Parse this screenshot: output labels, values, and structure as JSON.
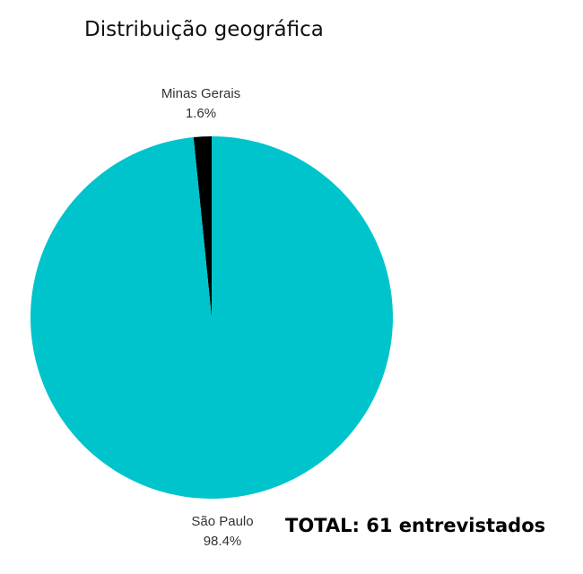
{
  "chart_data": {
    "type": "pie",
    "title": "Distribuição geográfica",
    "slices": [
      {
        "label": "Minas Gerais",
        "value": 1.6,
        "value_label": "1.6%",
        "color": "#000000"
      },
      {
        "label": "São Paulo",
        "value": 98.4,
        "value_label": "98.4%",
        "color": "#00C4CC"
      }
    ]
  },
  "annotation": {
    "total": "TOTAL: 61 entrevistados"
  }
}
